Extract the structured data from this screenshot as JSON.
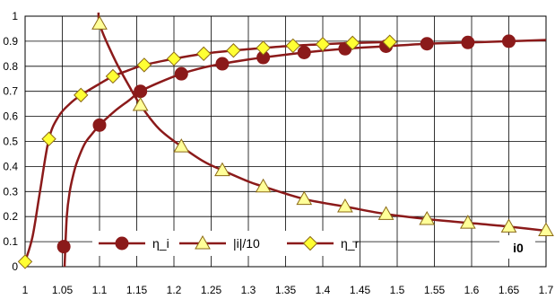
{
  "chart_data": {
    "type": "line",
    "title": "",
    "xlabel": "i0",
    "ylabel": "",
    "xlim": [
      1,
      1.7
    ],
    "ylim": [
      0,
      1
    ],
    "x_ticks": [
      "1",
      "1.05",
      "1.1",
      "1.15",
      "1.2",
      "1.25",
      "1.3",
      "1.35",
      "1.4",
      "1.45",
      "1.5",
      "1.55",
      "1.6",
      "1.65",
      "1.7"
    ],
    "y_ticks": [
      "0",
      "0.1",
      "0.2",
      "0.3",
      "0.4",
      "0.5",
      "0.6",
      "0.7",
      "0.8",
      "0.9",
      "1"
    ],
    "grid": true,
    "legend_position": "bottom-left",
    "line_color": "#8B1A1A",
    "series": [
      {
        "name": "η_i",
        "marker": "circle",
        "marker_color": "#8B1A1A",
        "points": [
          [
            1.052,
            0.08
          ],
          [
            1.1,
            0.565
          ],
          [
            1.155,
            0.7
          ],
          [
            1.21,
            0.77
          ],
          [
            1.265,
            0.81
          ],
          [
            1.32,
            0.835
          ],
          [
            1.375,
            0.855
          ],
          [
            1.43,
            0.87
          ],
          [
            1.485,
            0.88
          ],
          [
            1.54,
            0.89
          ],
          [
            1.595,
            0.895
          ],
          [
            1.65,
            0.9
          ]
        ],
        "curve": [
          [
            1.052,
            -0.05
          ],
          [
            1.053,
            0.0
          ],
          [
            1.056,
            0.2
          ],
          [
            1.06,
            0.3
          ],
          [
            1.065,
            0.37
          ],
          [
            1.07,
            0.42
          ],
          [
            1.08,
            0.49
          ],
          [
            1.09,
            0.53
          ],
          [
            1.1,
            0.565
          ],
          [
            1.12,
            0.62
          ],
          [
            1.14,
            0.665
          ],
          [
            1.155,
            0.7
          ],
          [
            1.18,
            0.735
          ],
          [
            1.21,
            0.77
          ],
          [
            1.24,
            0.795
          ],
          [
            1.265,
            0.81
          ],
          [
            1.3,
            0.827
          ],
          [
            1.32,
            0.835
          ],
          [
            1.375,
            0.855
          ],
          [
            1.43,
            0.87
          ],
          [
            1.485,
            0.88
          ],
          [
            1.54,
            0.89
          ],
          [
            1.595,
            0.895
          ],
          [
            1.65,
            0.9
          ],
          [
            1.7,
            0.905
          ]
        ]
      },
      {
        "name": "|i|/10",
        "marker": "triangle",
        "marker_color": "#FFFF99",
        "points": [
          [
            1.1,
            0.97
          ],
          [
            1.155,
            0.645
          ],
          [
            1.21,
            0.48
          ],
          [
            1.265,
            0.385
          ],
          [
            1.32,
            0.32
          ],
          [
            1.375,
            0.27
          ],
          [
            1.43,
            0.24
          ],
          [
            1.485,
            0.21
          ],
          [
            1.54,
            0.19
          ],
          [
            1.595,
            0.175
          ],
          [
            1.65,
            0.16
          ],
          [
            1.7,
            0.145
          ]
        ],
        "curve": [
          [
            1.1,
            1.06
          ],
          [
            1.1,
            0.97
          ],
          [
            1.12,
            0.83
          ],
          [
            1.14,
            0.72
          ],
          [
            1.155,
            0.645
          ],
          [
            1.18,
            0.55
          ],
          [
            1.21,
            0.48
          ],
          [
            1.24,
            0.42
          ],
          [
            1.265,
            0.385
          ],
          [
            1.3,
            0.34
          ],
          [
            1.32,
            0.32
          ],
          [
            1.375,
            0.27
          ],
          [
            1.43,
            0.24
          ],
          [
            1.485,
            0.21
          ],
          [
            1.54,
            0.19
          ],
          [
            1.595,
            0.175
          ],
          [
            1.65,
            0.16
          ],
          [
            1.71,
            0.14
          ]
        ]
      },
      {
        "name": "η_r",
        "marker": "diamond",
        "marker_color": "#FFFF33",
        "points": [
          [
            1.0,
            0.02
          ],
          [
            1.032,
            0.51
          ],
          [
            1.075,
            0.685
          ],
          [
            1.118,
            0.76
          ],
          [
            1.16,
            0.805
          ],
          [
            1.2,
            0.83
          ],
          [
            1.24,
            0.85
          ],
          [
            1.28,
            0.863
          ],
          [
            1.32,
            0.873
          ],
          [
            1.36,
            0.882
          ],
          [
            1.4,
            0.888
          ],
          [
            1.44,
            0.893
          ],
          [
            1.49,
            0.897
          ]
        ],
        "curve": [
          [
            1.0,
            0.02
          ],
          [
            1.01,
            0.12
          ],
          [
            1.02,
            0.3
          ],
          [
            1.032,
            0.51
          ],
          [
            1.045,
            0.6
          ],
          [
            1.06,
            0.65
          ],
          [
            1.075,
            0.685
          ],
          [
            1.1,
            0.73
          ],
          [
            1.118,
            0.76
          ],
          [
            1.14,
            0.785
          ],
          [
            1.16,
            0.805
          ],
          [
            1.2,
            0.83
          ],
          [
            1.24,
            0.85
          ],
          [
            1.28,
            0.863
          ],
          [
            1.32,
            0.873
          ],
          [
            1.36,
            0.882
          ],
          [
            1.4,
            0.888
          ],
          [
            1.44,
            0.893
          ],
          [
            1.49,
            0.897
          ]
        ]
      }
    ]
  }
}
